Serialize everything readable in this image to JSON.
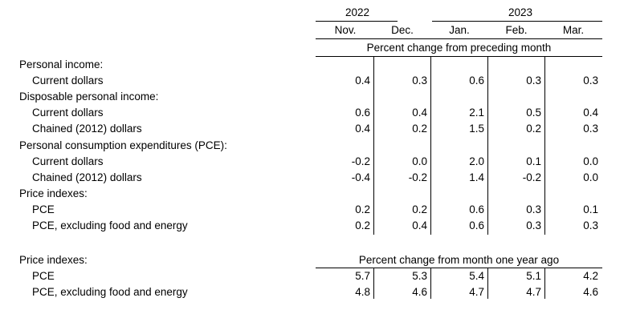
{
  "header": {
    "years": [
      "2022",
      "2023"
    ],
    "months": [
      "Nov.",
      "Dec.",
      "Jan.",
      "Feb.",
      "Mar."
    ]
  },
  "section1": {
    "caption": "Percent change from preceding month",
    "rows": [
      {
        "label": "Personal income:",
        "indent": false,
        "values": []
      },
      {
        "label": "Current dollars",
        "indent": true,
        "values": [
          "0.4",
          "0.3",
          "0.6",
          "0.3",
          "0.3"
        ]
      },
      {
        "label": "Disposable personal income:",
        "indent": false,
        "values": []
      },
      {
        "label": "Current dollars",
        "indent": true,
        "values": [
          "0.6",
          "0.4",
          "2.1",
          "0.5",
          "0.4"
        ]
      },
      {
        "label": "Chained (2012) dollars",
        "indent": true,
        "values": [
          "0.4",
          "0.2",
          "1.5",
          "0.2",
          "0.3"
        ]
      },
      {
        "label": "Personal consumption expenditures (PCE):",
        "indent": false,
        "values": []
      },
      {
        "label": "Current dollars",
        "indent": true,
        "values": [
          "-0.2",
          "0.0",
          "2.0",
          "0.1",
          "0.0"
        ]
      },
      {
        "label": "Chained (2012) dollars",
        "indent": true,
        "values": [
          "-0.4",
          "-0.2",
          "1.4",
          "-0.2",
          "0.0"
        ]
      },
      {
        "label": "Price indexes:",
        "indent": false,
        "values": []
      },
      {
        "label": "PCE",
        "indent": true,
        "values": [
          "0.2",
          "0.2",
          "0.6",
          "0.3",
          "0.1"
        ]
      },
      {
        "label": "PCE, excluding food and energy",
        "indent": true,
        "values": [
          "0.2",
          "0.4",
          "0.6",
          "0.3",
          "0.3"
        ]
      }
    ]
  },
  "section2": {
    "label": "Price indexes:",
    "caption": "Percent change from month one year ago",
    "rows": [
      {
        "label": "PCE",
        "indent": true,
        "values": [
          "5.7",
          "5.3",
          "5.4",
          "5.1",
          "4.2"
        ]
      },
      {
        "label": "PCE, excluding food and energy",
        "indent": true,
        "values": [
          "4.8",
          "4.6",
          "4.7",
          "4.7",
          "4.6"
        ]
      }
    ]
  }
}
